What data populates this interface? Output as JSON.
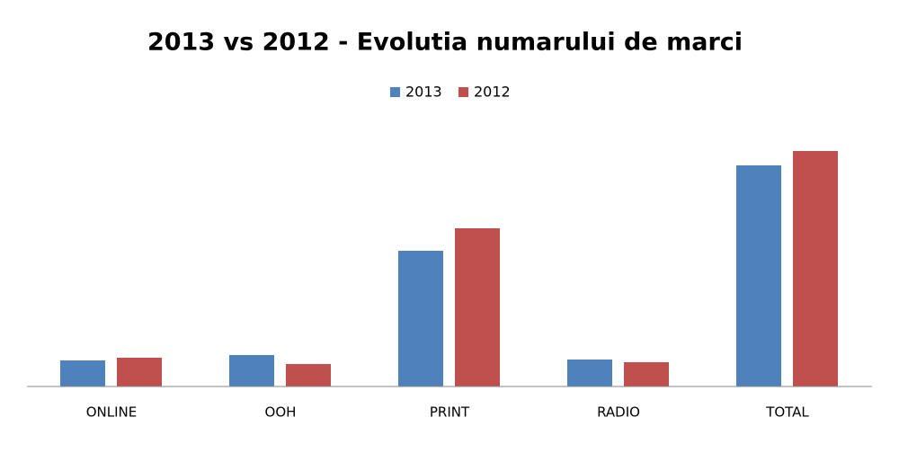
{
  "chart_data": {
    "type": "bar",
    "title": "2013 vs 2012 - Evolutia numarului de marci",
    "categories": [
      "ONLINE",
      "OOH",
      "PRINT",
      "RADIO",
      "TOTAL"
    ],
    "series": [
      {
        "name": "2013",
        "color": "#4f81bd",
        "values": [
          29,
          35,
          151,
          30,
          246
        ]
      },
      {
        "name": "2012",
        "color": "#c0504d",
        "values": [
          32,
          25,
          176,
          27,
          262
        ]
      }
    ],
    "legend": "top"
  }
}
